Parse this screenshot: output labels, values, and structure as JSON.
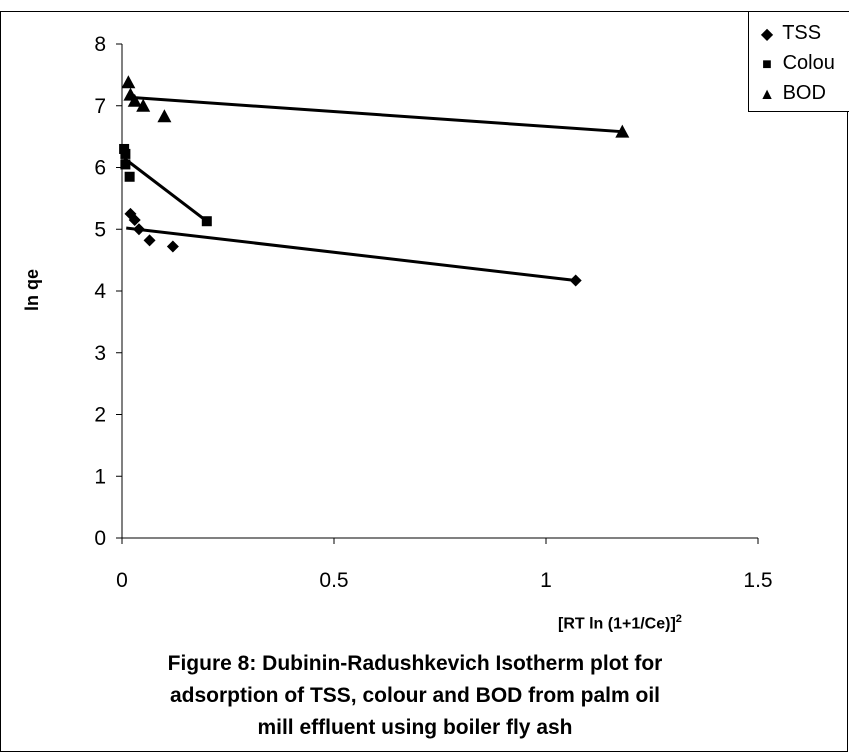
{
  "chart_data": {
    "type": "scatter",
    "xlabel": "[RT ln (1+1/Ce)]",
    "xlabel_superscript": "2",
    "ylabel": "ln qe",
    "xlim": [
      0,
      1.5
    ],
    "ylim": [
      0,
      8
    ],
    "x_ticks": [
      0,
      0.5,
      1,
      1.5
    ],
    "x_tick_labels": [
      "0",
      "0.5",
      "1",
      "1.5"
    ],
    "y_ticks": [
      0,
      1,
      2,
      3,
      4,
      5,
      6,
      7,
      8
    ],
    "y_tick_labels": [
      "0",
      "1",
      "2",
      "3",
      "4",
      "5",
      "6",
      "7",
      "8"
    ],
    "grid": false,
    "legend_position": "top-right",
    "series": [
      {
        "name": "TSS",
        "marker": "diamond",
        "points": [
          [
            0.02,
            5.25
          ],
          [
            0.03,
            5.15
          ],
          [
            0.04,
            5.0
          ],
          [
            0.065,
            4.82
          ],
          [
            0.12,
            4.72
          ],
          [
            1.07,
            4.17
          ]
        ],
        "trendline": [
          [
            0.01,
            5.02
          ],
          [
            1.07,
            4.17
          ]
        ]
      },
      {
        "name": "Colour",
        "marker": "square",
        "points": [
          [
            0.005,
            6.3
          ],
          [
            0.008,
            6.22
          ],
          [
            0.008,
            6.05
          ],
          [
            0.018,
            5.85
          ],
          [
            0.2,
            5.13
          ]
        ],
        "trendline": [
          [
            0.005,
            6.15
          ],
          [
            0.2,
            5.13
          ]
        ]
      },
      {
        "name": "BOD",
        "marker": "triangle",
        "points": [
          [
            0.015,
            7.38
          ],
          [
            0.02,
            7.18
          ],
          [
            0.03,
            7.08
          ],
          [
            0.05,
            7.0
          ],
          [
            0.1,
            6.83
          ],
          [
            1.18,
            6.58
          ]
        ],
        "trendline": [
          [
            0.01,
            7.14
          ],
          [
            1.18,
            6.58
          ]
        ]
      }
    ]
  },
  "legend": {
    "tss": "TSS",
    "colour": "Colou",
    "bod": "BOD",
    "tss_symbol": "◆",
    "colour_symbol": "■",
    "bod_symbol": "▲"
  },
  "caption": {
    "line1": "Figure 8: Dubinin-Radushkevich  Isotherm plot for",
    "line2": "adsorption of TSS, colour and BOD from palm oil",
    "line3": "mill effluent using boiler fly ash"
  }
}
